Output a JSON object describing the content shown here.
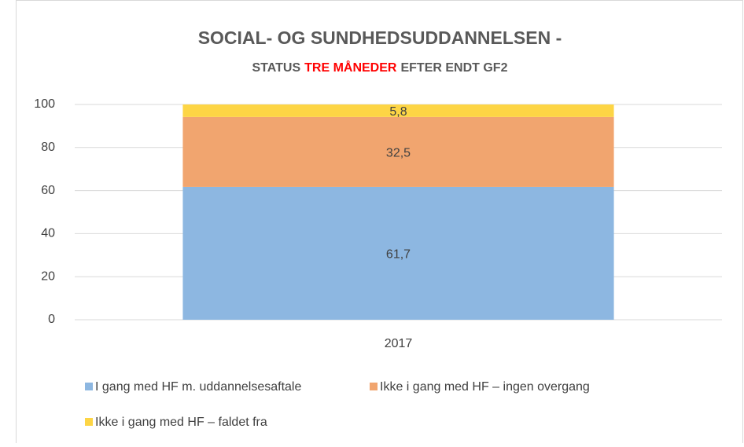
{
  "chart_data": {
    "type": "stacked_bar",
    "title": "SOCIAL- OG SUNDHEDSUDDANNELSEN -",
    "subtitle": [
      "STATUS",
      "TRE MÅNEDER",
      "EFTER ENDT GF2"
    ],
    "subtitle_colors": [
      "#595959",
      "#ff0000",
      "#595959"
    ],
    "categories": [
      "2017"
    ],
    "series": [
      {
        "name": "I gang med HF m. uddannelsesaftale",
        "color": "#8db7e1",
        "values": [
          61.7
        ],
        "value_labels": [
          "61,7"
        ]
      },
      {
        "name": "Ikke i gang med HF – ingen overgang",
        "color": "#f1a56f",
        "values": [
          32.5
        ],
        "value_labels": [
          "32,5"
        ]
      },
      {
        "name": "Ikke i gang med HF – faldet fra",
        "color": "#fdd545",
        "values": [
          5.8
        ],
        "value_labels": [
          "5,8"
        ]
      }
    ],
    "ylim": [
      0,
      100
    ],
    "yticks": [
      0,
      20,
      40,
      60,
      80,
      100
    ],
    "grid": true,
    "legend": "bottom"
  }
}
